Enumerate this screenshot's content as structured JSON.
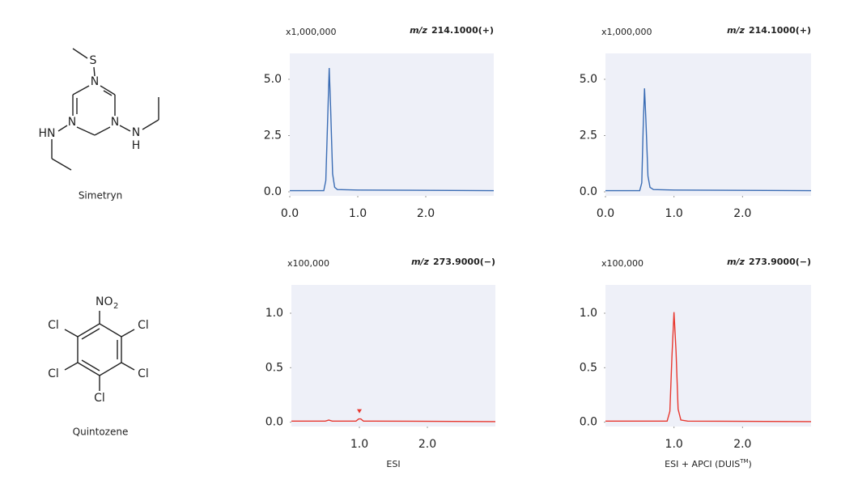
{
  "compounds": [
    {
      "name": "Simetryn",
      "atoms": [
        "S",
        "N",
        "N",
        "N",
        "HN",
        "N",
        "H"
      ]
    },
    {
      "name": "Quintozene",
      "atoms": [
        "NO",
        "2",
        "Cl",
        "Cl",
        "Cl",
        "Cl",
        "Cl"
      ]
    }
  ],
  "chart_data": [
    {
      "type": "line",
      "multiplier": "x1,000,000",
      "mz": "m/z",
      "ion": "214.1000(+)",
      "x": [
        0,
        0.5,
        0.53,
        0.56,
        0.58,
        0.6,
        0.63,
        0.66,
        0.7,
        1.0,
        3.0
      ],
      "series": [
        {
          "color": "#3a6cb4",
          "values": [
            0.05,
            0.05,
            0.5,
            3.5,
            5.5,
            3.8,
            0.8,
            0.2,
            0.1,
            0.08,
            0.05
          ]
        }
      ],
      "xlim": [
        0,
        3.0
      ],
      "ylim": [
        -0.18,
        6.15
      ],
      "xticks": [
        {
          "value": 0,
          "label": "0.0"
        },
        {
          "value": 1,
          "label": "1.0"
        },
        {
          "value": 2,
          "label": "2.0"
        }
      ],
      "yticks": [
        {
          "value": 0,
          "label": "0.0"
        },
        2.5,
        {
          "value": 5,
          "label": "5.0"
        }
      ]
    },
    {
      "type": "line",
      "multiplier": "x1,000,000",
      "mz": "m/z",
      "ion": "214.1000(+)",
      "x": [
        0,
        0.5,
        0.53,
        0.55,
        0.57,
        0.59,
        0.62,
        0.65,
        0.7,
        1.0,
        3.0
      ],
      "series": [
        {
          "color": "#3a6cb4",
          "values": [
            0.05,
            0.05,
            0.4,
            2.8,
            4.6,
            3.2,
            0.7,
            0.2,
            0.1,
            0.08,
            0.05
          ]
        }
      ],
      "xlim": [
        0,
        3.0
      ],
      "ylim": [
        -0.18,
        6.15
      ],
      "xticks": [
        {
          "value": 0,
          "label": "0.0"
        },
        {
          "value": 1,
          "label": "1.0"
        },
        {
          "value": 2,
          "label": "2.0"
        }
      ],
      "yticks": [
        {
          "value": 0,
          "label": "0.0"
        },
        2.5,
        {
          "value": 5,
          "label": "5.0"
        }
      ]
    },
    {
      "type": "line",
      "multiplier": "x100,000",
      "mz": "m/z",
      "ion": "273.9000(−)",
      "x": [
        0,
        0.5,
        0.55,
        0.6,
        0.95,
        0.99,
        1.02,
        1.06,
        1.2,
        3.0
      ],
      "series": [
        {
          "color": "#e8372e",
          "values": [
            0.01,
            0.01,
            0.02,
            0.01,
            0.01,
            0.03,
            0.03,
            0.01,
            0.01,
            0.005
          ]
        }
      ],
      "peak_marker": 1.0,
      "xlim": [
        0,
        3.0
      ],
      "ylim": [
        -0.04,
        1.26
      ],
      "xticks": [
        {
          "value": 1,
          "label": "1.0"
        },
        {
          "value": 2,
          "label": "2.0"
        }
      ],
      "yticks": [
        {
          "value": 0,
          "label": "0.0"
        },
        0.5,
        {
          "value": 1,
          "label": "1.0"
        }
      ]
    },
    {
      "type": "line",
      "multiplier": "x100,000",
      "mz": "m/z",
      "ion": "273.9000(−)",
      "x": [
        0,
        0.9,
        0.94,
        0.97,
        1.0,
        1.03,
        1.06,
        1.1,
        1.2,
        3.0
      ],
      "series": [
        {
          "color": "#e8372e",
          "values": [
            0.01,
            0.01,
            0.1,
            0.6,
            1.01,
            0.65,
            0.12,
            0.02,
            0.01,
            0.005
          ]
        }
      ],
      "xlim": [
        0,
        3.0
      ],
      "ylim": [
        -0.04,
        1.26
      ],
      "xticks": [
        {
          "value": 1,
          "label": "1.0"
        },
        {
          "value": 2,
          "label": "2.0"
        }
      ],
      "yticks": [
        {
          "value": 0,
          "label": "0.0"
        },
        0.5,
        {
          "value": 1,
          "label": "1.0"
        }
      ]
    }
  ],
  "captions": [
    {
      "parts": [
        "ESI"
      ]
    },
    {
      "parts": [
        "ESI + APCI (DUIS",
        "TM",
        ")"
      ]
    }
  ]
}
